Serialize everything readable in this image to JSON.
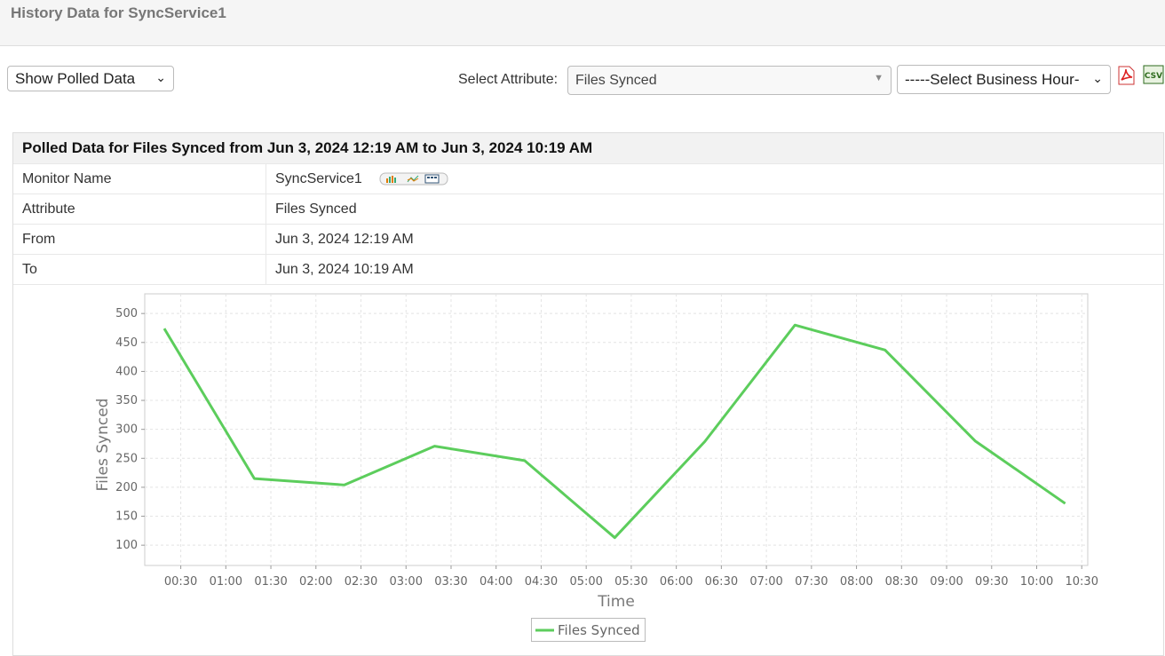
{
  "header": {
    "title": "History Data for SyncService1"
  },
  "toolbar": {
    "view_select": "Show Polled Data",
    "attribute_label": "Select Attribute:",
    "attribute_select": "Files Synced",
    "business_hour_select": "-----Select Business Hour-",
    "csv_icon": "CSV"
  },
  "panel": {
    "title": "Polled Data for Files Synced from Jun 3, 2024 12:19 AM to Jun 3, 2024 10:19 AM",
    "rows": [
      [
        "Monitor Name",
        "SyncService1"
      ],
      [
        "Attribute",
        "Files Synced"
      ],
      [
        "From",
        "Jun 3, 2024 12:19 AM"
      ],
      [
        "To",
        "Jun 3, 2024 10:19 AM"
      ]
    ]
  },
  "chart_data": {
    "type": "line",
    "x_label": "Time",
    "y_label": "Files Synced",
    "x": [
      19,
      79,
      139,
      199,
      259,
      319,
      379,
      439,
      499,
      559,
      619
    ],
    "series": [
      {
        "name": "Files Synced",
        "color": "#5ccd5c",
        "values": [
          474,
          215,
          204,
          271,
          246,
          113,
          279,
          480,
          437,
          280,
          172
        ]
      }
    ],
    "xlim": [
      6,
      634
    ],
    "xticks": [
      {
        "value": 30,
        "label": "00:30"
      },
      {
        "value": 60,
        "label": "01:00"
      },
      {
        "value": 90,
        "label": "01:30"
      },
      {
        "value": 120,
        "label": "02:00"
      },
      {
        "value": 150,
        "label": "02:30"
      },
      {
        "value": 180,
        "label": "03:00"
      },
      {
        "value": 210,
        "label": "03:30"
      },
      {
        "value": 240,
        "label": "04:00"
      },
      {
        "value": 270,
        "label": "04:30"
      },
      {
        "value": 300,
        "label": "05:00"
      },
      {
        "value": 330,
        "label": "05:30"
      },
      {
        "value": 360,
        "label": "06:00"
      },
      {
        "value": 390,
        "label": "06:30"
      },
      {
        "value": 420,
        "label": "07:00"
      },
      {
        "value": 450,
        "label": "07:30"
      },
      {
        "value": 480,
        "label": "08:00"
      },
      {
        "value": 510,
        "label": "08:30"
      },
      {
        "value": 540,
        "label": "09:00"
      },
      {
        "value": 570,
        "label": "09:30"
      },
      {
        "value": 600,
        "label": "10:00"
      },
      {
        "value": 630,
        "label": "10:30"
      }
    ],
    "ylim": [
      65,
      534
    ],
    "yticks": [
      100,
      150,
      200,
      250,
      300,
      350,
      400,
      450,
      500
    ],
    "grid": true,
    "legend": "bottom"
  }
}
